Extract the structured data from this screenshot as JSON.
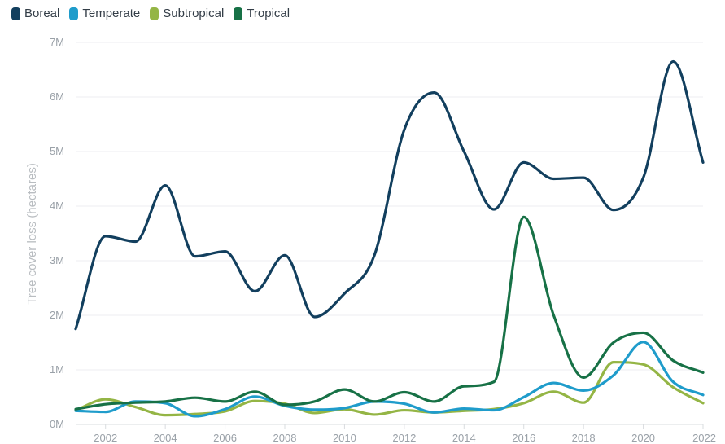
{
  "chart_data": {
    "type": "line",
    "ylabel": "Tree cover loss (hectares)",
    "xlabel": "",
    "x": [
      2001,
      2002,
      2003,
      2004,
      2005,
      2006,
      2007,
      2008,
      2009,
      2010,
      2011,
      2012,
      2013,
      2014,
      2015,
      2016,
      2017,
      2018,
      2019,
      2020,
      2021,
      2022
    ],
    "xlim": [
      2001,
      2022
    ],
    "ylim": [
      0,
      7000000
    ],
    "x_ticks": [
      2002,
      2004,
      2006,
      2008,
      2010,
      2012,
      2014,
      2016,
      2018,
      2020,
      2022
    ],
    "y_ticks": [
      0,
      1000000,
      2000000,
      3000000,
      4000000,
      5000000,
      6000000,
      7000000
    ],
    "y_tick_labels": [
      "0M",
      "1M",
      "2M",
      "3M",
      "4M",
      "5M",
      "6M",
      "7M"
    ],
    "grid": true,
    "legend_position": "top-left",
    "series": [
      {
        "name": "Boreal",
        "color": "#123f5e",
        "values": [
          1750000,
          3450000,
          3350000,
          4380000,
          3080000,
          3170000,
          2440000,
          3100000,
          1970000,
          2400000,
          3100000,
          5400000,
          6080000,
          5000000,
          3940000,
          4800000,
          4500000,
          4520000,
          3930000,
          4520000,
          6650000,
          4800000
        ]
      },
      {
        "name": "Temperate",
        "color": "#1f9ccb",
        "values": [
          250000,
          230000,
          420000,
          390000,
          150000,
          280000,
          510000,
          340000,
          270000,
          300000,
          420000,
          380000,
          220000,
          290000,
          260000,
          500000,
          760000,
          620000,
          900000,
          1510000,
          780000,
          540000
        ]
      },
      {
        "name": "Subtropical",
        "color": "#94b545",
        "values": [
          260000,
          460000,
          320000,
          170000,
          190000,
          240000,
          430000,
          380000,
          210000,
          280000,
          180000,
          260000,
          220000,
          250000,
          280000,
          390000,
          600000,
          400000,
          1140000,
          1100000,
          680000,
          390000
        ]
      },
      {
        "name": "Tropical",
        "color": "#177146",
        "values": [
          280000,
          370000,
          400000,
          420000,
          490000,
          420000,
          600000,
          360000,
          420000,
          640000,
          420000,
          590000,
          420000,
          700000,
          780000,
          3800000,
          2000000,
          860000,
          1500000,
          1680000,
          1170000,
          950000
        ]
      }
    ]
  }
}
